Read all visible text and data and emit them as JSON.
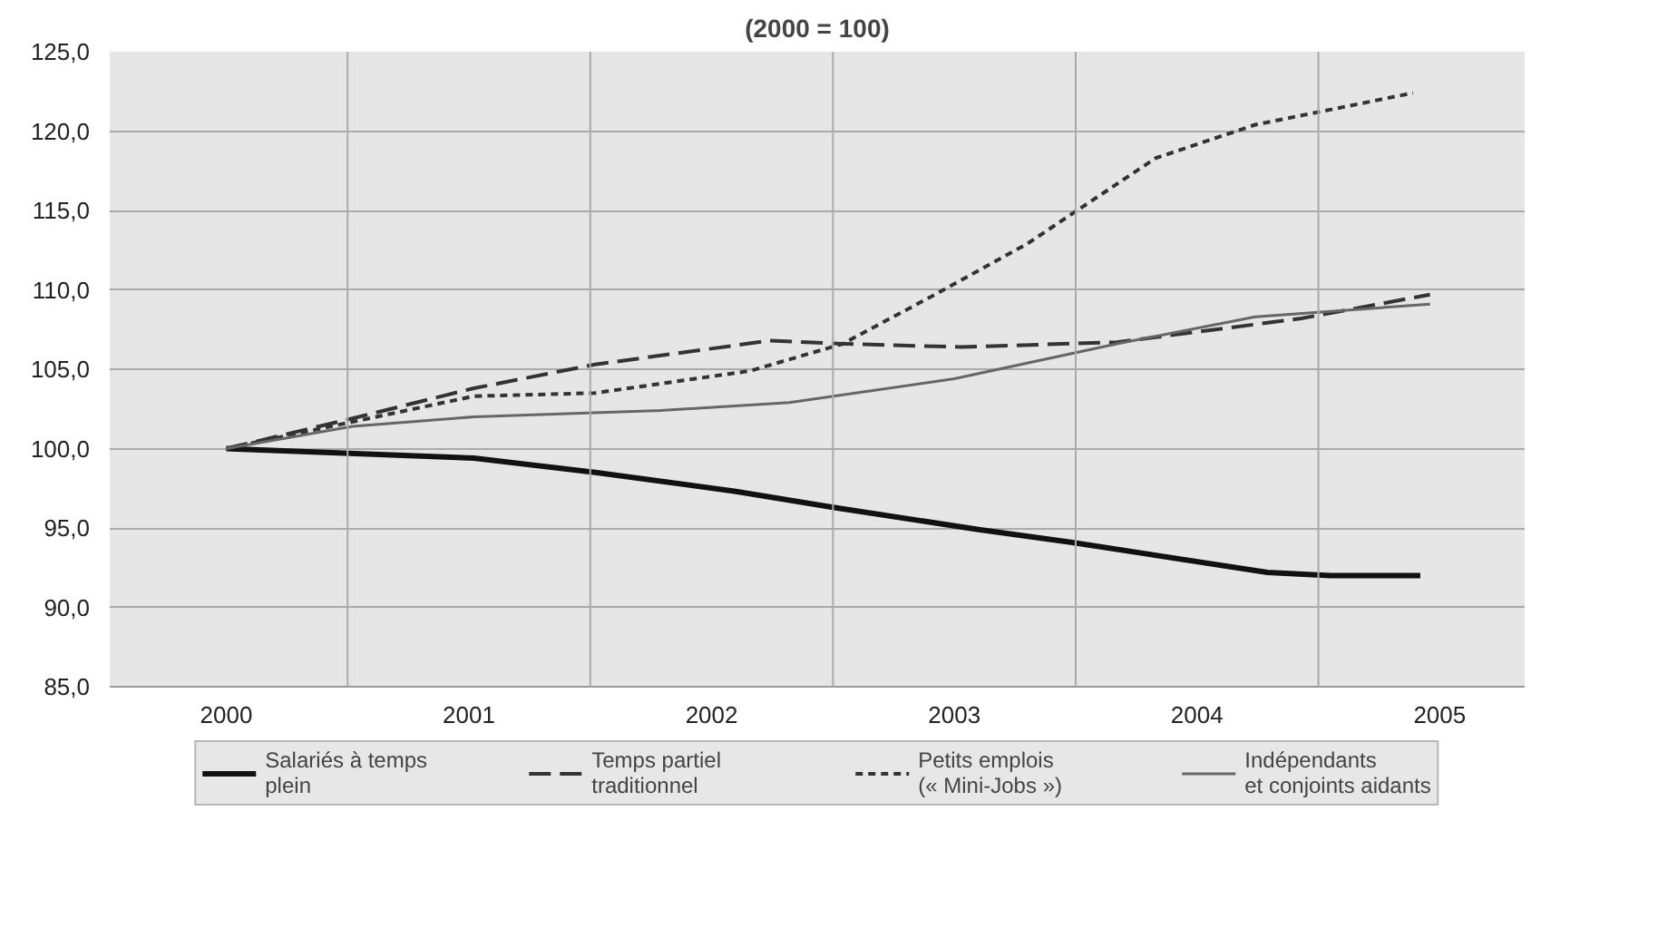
{
  "chart_data": {
    "type": "line",
    "title": "(2000 = 100)",
    "xlim": [
      1999.52,
      2005.35
    ],
    "ylim": [
      85,
      125
    ],
    "xticks": [
      {
        "value": 2000,
        "label": "2000"
      },
      {
        "value": 2000.5,
        "label": null
      },
      {
        "value": 2001,
        "label": "2001"
      },
      {
        "value": 2001.5,
        "label": null
      },
      {
        "value": 2002,
        "label": "2002"
      },
      {
        "value": 2002.5,
        "label": null
      },
      {
        "value": 2003,
        "label": "2003"
      },
      {
        "value": 2003.5,
        "label": null
      },
      {
        "value": 2004,
        "label": "2004"
      },
      {
        "value": 2004.5,
        "label": null
      },
      {
        "value": 2005,
        "label": "2005"
      }
    ],
    "yticks": [
      {
        "value": 85,
        "label": "85,0"
      },
      {
        "value": 90,
        "label": "90,0"
      },
      {
        "value": 95,
        "label": "95,0"
      },
      {
        "value": 100,
        "label": "100,0"
      },
      {
        "value": 105,
        "label": "105,0"
      },
      {
        "value": 110,
        "label": "110,0"
      },
      {
        "value": 115,
        "label": "115,0"
      },
      {
        "value": 120,
        "label": "120,0"
      },
      {
        "value": 125,
        "label": "125,0"
      }
    ],
    "grid": true,
    "legend": "bottom",
    "series": [
      {
        "name": "Salariés à temps\nplein",
        "color": "#111111",
        "line_style": "solid",
        "x": [
          2000,
          2001.02,
          2001.52,
          2002.1,
          2002.5,
          2003.1,
          2003.48,
          2004.29,
          2004.55,
          2004.92
        ],
        "values": [
          100,
          99.4,
          98.5,
          97.3,
          96.3,
          94.9,
          94.1,
          92.2,
          92.0,
          92.0
        ]
      },
      {
        "name": "Temps partiel\ntraditionnel",
        "color": "#333333",
        "line_style": "dashed",
        "x": [
          2000,
          2000.52,
          2001.02,
          2001.52,
          2002.24,
          2002.54,
          2003.03,
          2003.67,
          2004.43,
          2004.96
        ],
        "values": [
          100,
          101.9,
          103.8,
          105.3,
          106.8,
          106.6,
          106.4,
          106.7,
          108.2,
          109.7
        ]
      },
      {
        "name": "Petits emplois\n(« Mini-Jobs »)",
        "color": "#333333",
        "line_style": "dotted",
        "x": [
          2000,
          2001.02,
          2001.52,
          2002.16,
          2002.54,
          2002.92,
          2003.3,
          2003.83,
          2004.24,
          2004.89
        ],
        "values": [
          100,
          103.3,
          103.5,
          104.9,
          106.6,
          109.7,
          112.9,
          118.3,
          120.4,
          122.4
        ]
      },
      {
        "name": "Indépendants\net conjoints aidants",
        "color": "#666666",
        "line_style": "solid",
        "x": [
          2000,
          2000.52,
          2001.02,
          2001.79,
          2002.32,
          2003.0,
          2003.67,
          2004.24,
          2004.96
        ],
        "values": [
          100,
          101.4,
          102.0,
          102.4,
          102.9,
          104.4,
          106.6,
          108.3,
          109.1
        ]
      }
    ]
  }
}
